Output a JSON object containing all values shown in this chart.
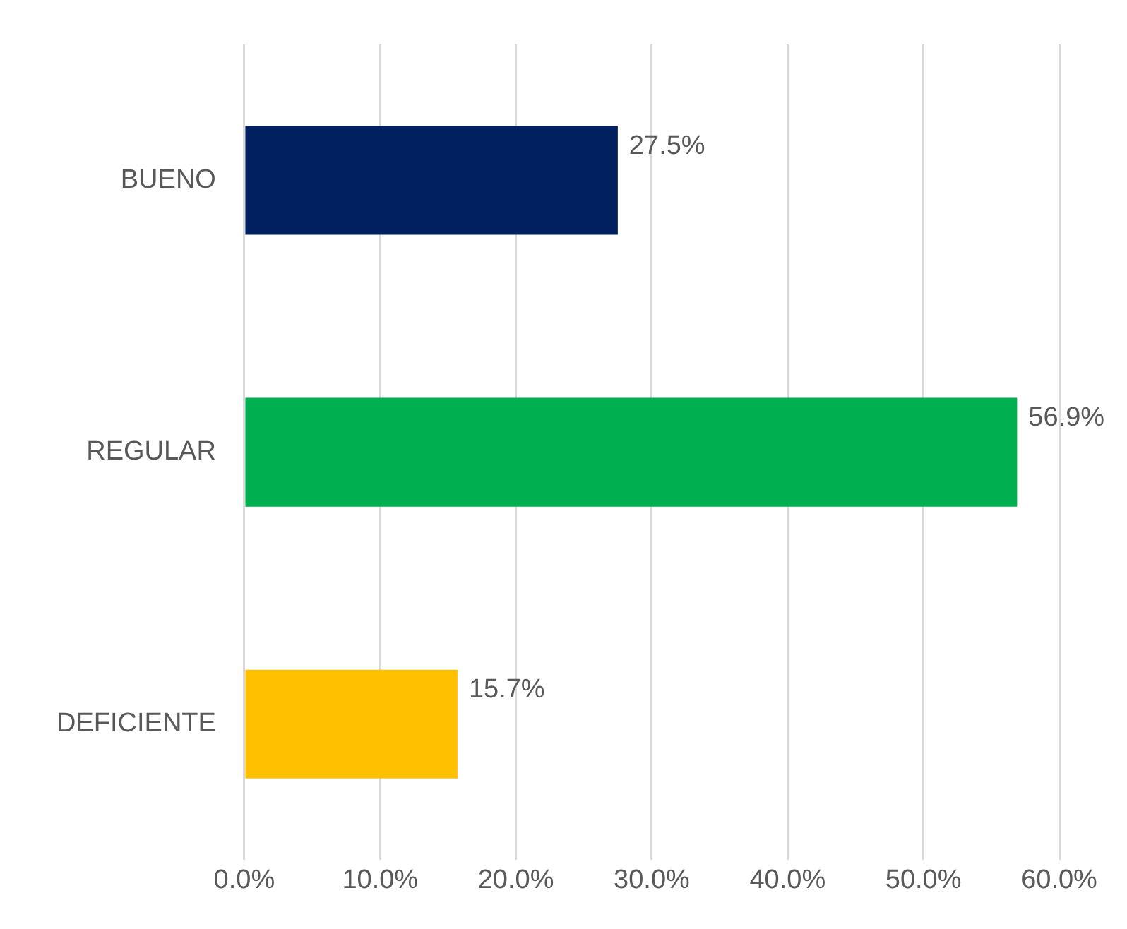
{
  "chart_data": {
    "type": "bar",
    "orientation": "horizontal",
    "categories": [
      "BUENO",
      "REGULAR",
      "DEFICIENTE"
    ],
    "values": [
      27.5,
      56.9,
      15.7
    ],
    "colors": [
      "#002060",
      "#00b050",
      "#ffc000"
    ],
    "value_labels": [
      "27.5%",
      "56.9%",
      "15.7%"
    ],
    "xlim": [
      0,
      60
    ],
    "xticks": [
      {
        "value": 0,
        "label": "0.0%"
      },
      {
        "value": 10,
        "label": "10.0%"
      },
      {
        "value": 20,
        "label": "20.0%"
      },
      {
        "value": 30,
        "label": "30.0%"
      },
      {
        "value": 40,
        "label": "40.0%"
      },
      {
        "value": 50,
        "label": "50.0%"
      },
      {
        "value": 60,
        "label": "60.0%"
      }
    ],
    "grid": "x",
    "legend": false
  }
}
